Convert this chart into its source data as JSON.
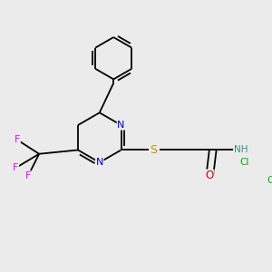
{
  "background_color": "#ebebeb",
  "bond_color": "#000000",
  "atom_colors": {
    "N": "#0000cc",
    "S": "#bb9900",
    "O": "#dd0000",
    "F": "#ee00ee",
    "Cl": "#00aa00",
    "H": "#448888",
    "C": "#000000"
  },
  "figsize": [
    3.0,
    3.0
  ],
  "dpi": 100
}
